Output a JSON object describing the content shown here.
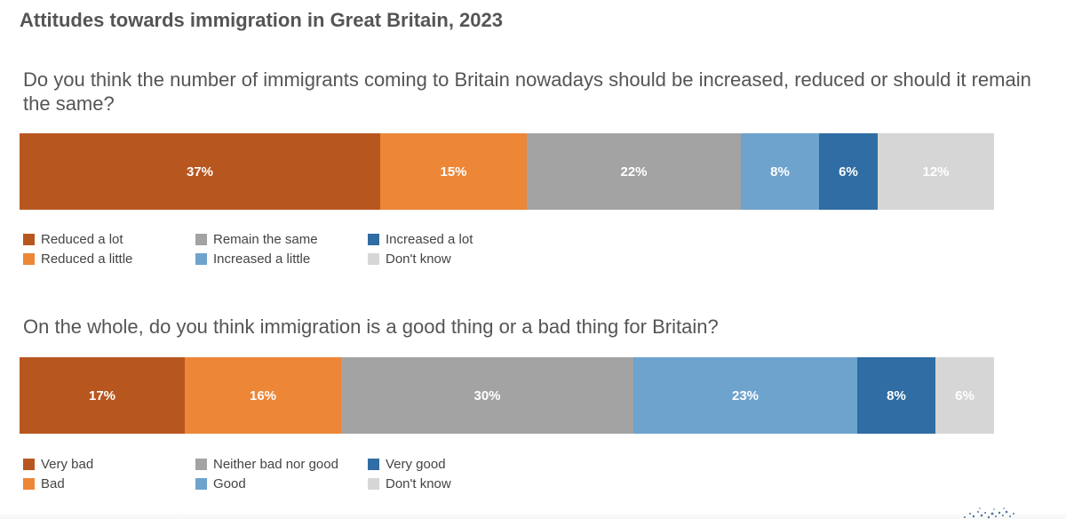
{
  "title": "Attitudes towards immigration in Great Britain, 2023",
  "chart_data": [
    {
      "type": "bar",
      "orientation": "horizontal-stacked-100",
      "question": "Do you think the number of immigrants coming to Britain nowadays should be increased, reduced or should it remain the same?",
      "series": [
        {
          "name": "Reduced a lot",
          "value": 37,
          "label": "37%",
          "color": "#B85620"
        },
        {
          "name": "Reduced a little",
          "value": 15,
          "label": "15%",
          "color": "#ED8637"
        },
        {
          "name": "Remain the same",
          "value": 22,
          "label": "22%",
          "color": "#A3A3A3"
        },
        {
          "name": "Increased a little",
          "value": 8,
          "label": "8%",
          "color": "#6EA3CE"
        },
        {
          "name": "Increased a lot",
          "value": 6,
          "label": "6%",
          "color": "#2F6DA4"
        },
        {
          "name": "Don't know",
          "value": 12,
          "label": "12%",
          "color": "#D6D6D6"
        }
      ],
      "legend_order": [
        "Reduced a lot",
        "Reduced a little",
        "Remain the same",
        "Increased a little",
        "Increased a lot",
        "Don't know"
      ],
      "legend_position": "bottom-left"
    },
    {
      "type": "bar",
      "orientation": "horizontal-stacked-100",
      "question": "On the whole, do you think immigration is a good thing or a bad thing for Britain?",
      "series": [
        {
          "name": "Very bad",
          "value": 17,
          "label": "17%",
          "color": "#B85620"
        },
        {
          "name": "Bad",
          "value": 16,
          "label": "16%",
          "color": "#ED8637"
        },
        {
          "name": "Neither bad nor good",
          "value": 30,
          "label": "30%",
          "color": "#A3A3A3"
        },
        {
          "name": "Good",
          "value": 23,
          "label": "23%",
          "color": "#6EA3CE"
        },
        {
          "name": "Very good",
          "value": 8,
          "label": "8%",
          "color": "#2F6DA4"
        },
        {
          "name": "Don't know",
          "value": 6,
          "label": "6%",
          "color": "#D6D6D6"
        }
      ],
      "legend_order": [
        "Very bad",
        "Bad",
        "Neither bad nor good",
        "Good",
        "Very good",
        "Don't know"
      ],
      "legend_position": "bottom-left"
    }
  ]
}
